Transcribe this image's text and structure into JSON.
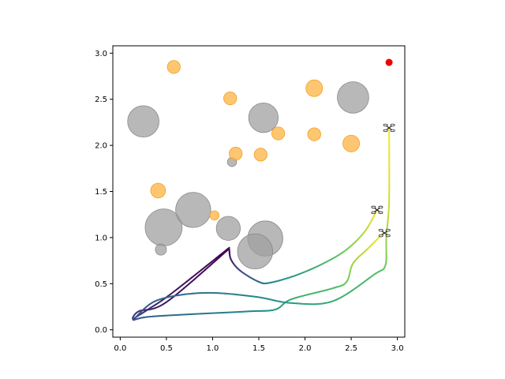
{
  "chart_data": {
    "type": "scatter",
    "title": "",
    "xlabel": "",
    "ylabel": "",
    "xlim": [
      -0.08,
      3.08
    ],
    "ylim": [
      -0.08,
      3.08
    ],
    "xticks": [
      0.0,
      0.5,
      1.0,
      1.5,
      2.0,
      2.5,
      3.0
    ],
    "yticks": [
      0.0,
      0.5,
      1.0,
      1.5,
      2.0,
      2.5,
      3.0
    ],
    "xtick_labels": [
      "0.0",
      "0.5",
      "1.0",
      "1.5",
      "2.0",
      "2.5",
      "3.0"
    ],
    "ytick_labels": [
      "0.0",
      "0.5",
      "1.0",
      "1.5",
      "2.0",
      "2.5",
      "3.0"
    ],
    "grid": false,
    "colors": {
      "gray_obstacle": "#a0a0a0",
      "orange_region": "#ffb84d",
      "goal": "#ee0000"
    },
    "gray_obstacles": [
      {
        "x": 0.25,
        "y": 2.26,
        "r": 0.17
      },
      {
        "x": 1.55,
        "y": 2.3,
        "r": 0.16
      },
      {
        "x": 2.52,
        "y": 2.52,
        "r": 0.17
      },
      {
        "x": 0.47,
        "y": 1.11,
        "r": 0.2
      },
      {
        "x": 0.79,
        "y": 1.3,
        "r": 0.19
      },
      {
        "x": 1.17,
        "y": 1.1,
        "r": 0.13
      },
      {
        "x": 1.57,
        "y": 0.99,
        "r": 0.19
      },
      {
        "x": 1.46,
        "y": 0.85,
        "r": 0.19
      },
      {
        "x": 0.44,
        "y": 0.87,
        "r": 0.06
      },
      {
        "x": 1.21,
        "y": 1.82,
        "r": 0.05
      }
    ],
    "orange_regions": [
      {
        "x": 0.58,
        "y": 2.85,
        "r": 0.07
      },
      {
        "x": 1.19,
        "y": 2.51,
        "r": 0.07
      },
      {
        "x": 2.1,
        "y": 2.62,
        "r": 0.09
      },
      {
        "x": 1.25,
        "y": 1.91,
        "r": 0.07
      },
      {
        "x": 1.52,
        "y": 1.9,
        "r": 0.07
      },
      {
        "x": 1.71,
        "y": 2.13,
        "r": 0.07
      },
      {
        "x": 2.1,
        "y": 2.12,
        "r": 0.07
      },
      {
        "x": 2.5,
        "y": 2.02,
        "r": 0.09
      },
      {
        "x": 0.41,
        "y": 1.51,
        "r": 0.08
      },
      {
        "x": 1.02,
        "y": 1.24,
        "r": 0.05
      }
    ],
    "goal": {
      "x": 2.91,
      "y": 2.9
    },
    "drones": [
      {
        "x": 2.91,
        "y": 2.19
      },
      {
        "x": 2.78,
        "y": 1.3
      },
      {
        "x": 2.86,
        "y": 1.05
      }
    ],
    "trajectories": [
      {
        "points": [
          [
            1.18,
            0.89
          ],
          [
            0.55,
            0.39
          ],
          [
            0.3,
            0.22
          ],
          [
            0.14,
            0.11
          ],
          [
            0.3,
            0.14
          ],
          [
            0.8,
            0.17
          ],
          [
            1.4,
            0.2
          ],
          [
            1.68,
            0.22
          ],
          [
            1.85,
            0.33
          ],
          [
            2.3,
            0.45
          ],
          [
            2.45,
            0.52
          ],
          [
            2.52,
            0.72
          ],
          [
            2.68,
            0.88
          ],
          [
            2.85,
            1.05
          ]
        ]
      },
      {
        "points": [
          [
            1.18,
            0.88
          ],
          [
            0.5,
            0.3
          ],
          [
            0.2,
            0.2
          ],
          [
            0.15,
            0.12
          ],
          [
            0.4,
            0.32
          ],
          [
            0.9,
            0.4
          ],
          [
            1.45,
            0.36
          ],
          [
            1.85,
            0.29
          ],
          [
            2.3,
            0.31
          ],
          [
            2.75,
            0.6
          ],
          [
            2.87,
            0.7
          ],
          [
            2.88,
            1.0
          ],
          [
            2.91,
            1.4
          ],
          [
            2.91,
            2.19
          ]
        ]
      },
      {
        "points": [
          [
            1.18,
            0.87
          ],
          [
            1.2,
            0.76
          ],
          [
            1.3,
            0.64
          ],
          [
            1.5,
            0.52
          ],
          [
            1.62,
            0.51
          ],
          [
            1.9,
            0.59
          ],
          [
            2.2,
            0.72
          ],
          [
            2.45,
            0.87
          ],
          [
            2.65,
            1.07
          ],
          [
            2.78,
            1.3
          ]
        ]
      }
    ]
  }
}
